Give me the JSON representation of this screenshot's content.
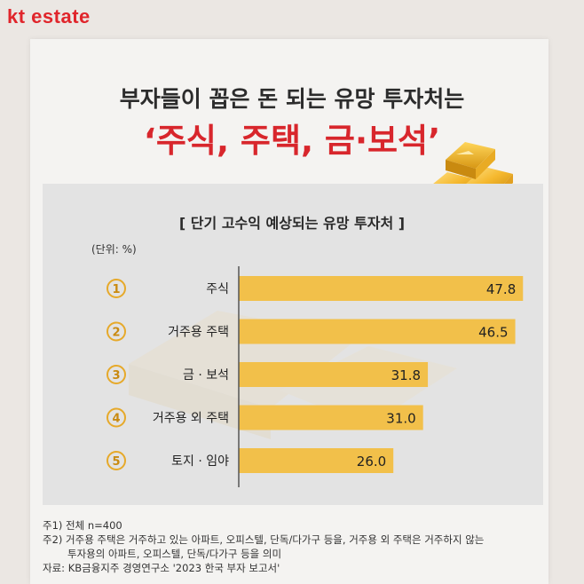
{
  "brand": {
    "logo_text": "kt estate"
  },
  "header": {
    "title_line1": "부자들이 꼽은 돈 되는 유망 투자처는",
    "title_line2": "‘주식, 주택, 금·보석’"
  },
  "chart_header": {
    "title": "[ 단기 고수익 예상되는 유망 투자처 ]",
    "unit": "(단위: %)"
  },
  "chart_data": {
    "type": "bar",
    "orientation": "horizontal",
    "title": "[ 단기 고수익 예상되는 유망 투자처 ]",
    "unit_label": "(단위: %)",
    "ranks": [
      "1",
      "2",
      "3",
      "4",
      "5"
    ],
    "categories": [
      "주식",
      "거주용 주택",
      "금 · 보석",
      "거주용 외 주택",
      "토지 · 임야"
    ],
    "values": [
      47.8,
      46.5,
      31.8,
      31.0,
      26.0
    ],
    "value_labels": [
      "47.8",
      "46.5",
      "31.8",
      "31.0",
      "26.0"
    ],
    "xlim": [
      0,
      50
    ],
    "bar_color": "#f2c04a",
    "grid": false
  },
  "notes": {
    "note1": "주1) 전체 n=400",
    "note2": "주2) 거주용 주택은 거주하고 있는 아파트, 오피스텔, 단독/다가구 등을, 거주용 외 주택은 거주하지 않는",
    "note2_cont": "투자용의 아파트, 오피스텔, 단독/다가구 등을 의미",
    "source": "자료: KB금융지주 경영연구소 '2023 한국 부자 보고서'"
  },
  "colors": {
    "brand_red": "#e0252b",
    "title_red": "#d8262c",
    "bar": "#f2c04a",
    "panel": "#e3e3e3"
  }
}
